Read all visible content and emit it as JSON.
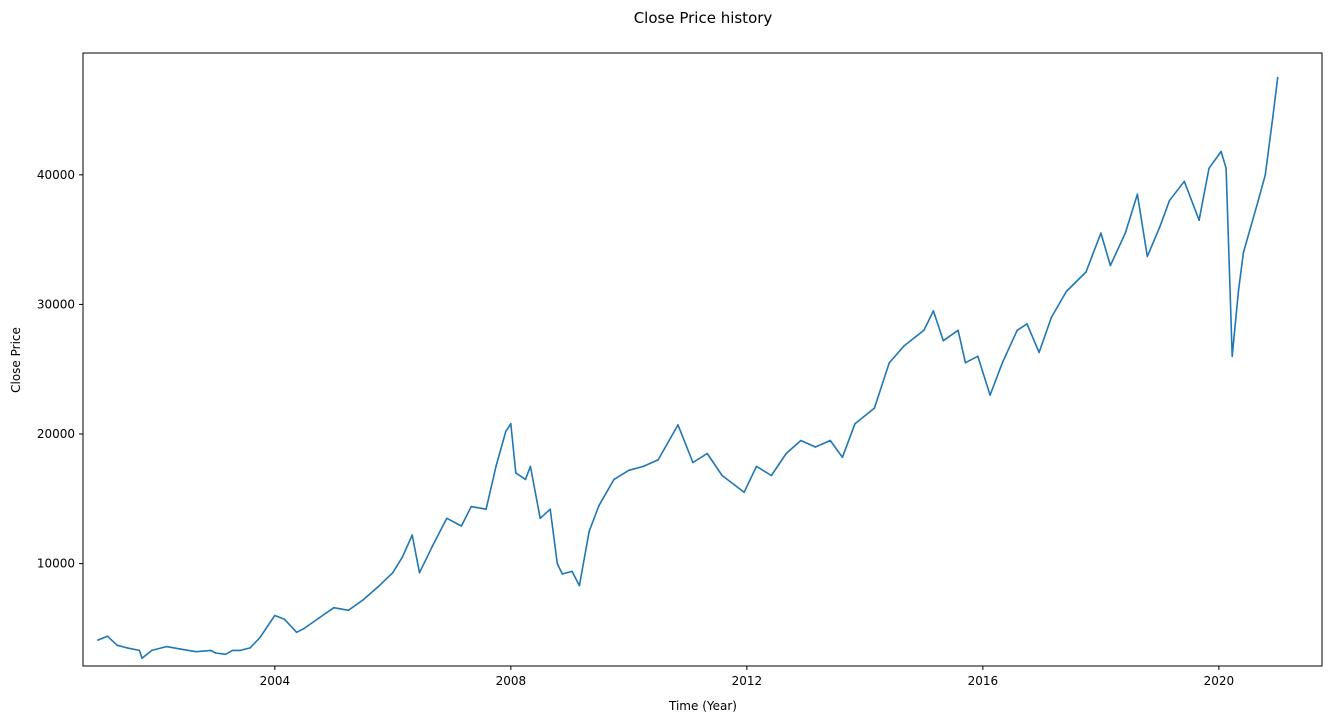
{
  "chart_data": {
    "type": "line",
    "title": "Close Price history",
    "xlabel": "Time (Year)",
    "ylabel": "Close Price",
    "x_ticks": [
      "2004",
      "2008",
      "2012",
      "2016",
      "2020"
    ],
    "y_ticks": [
      "10000",
      "20000",
      "30000",
      "40000"
    ],
    "xlim": [
      "2000-10-01",
      "2021-10-01"
    ],
    "ylim": [
      2100,
      49400
    ],
    "grid": false,
    "legend": "none",
    "series": [
      {
        "color": "#1f77b4",
        "points": [
          [
            "2001-01-01",
            4100
          ],
          [
            "2001-03-01",
            4400
          ],
          [
            "2001-05-01",
            3700
          ],
          [
            "2001-07-01",
            3500
          ],
          [
            "2001-09-15",
            3300
          ],
          [
            "2001-10-01",
            2700
          ],
          [
            "2001-12-01",
            3300
          ],
          [
            "2002-03-01",
            3600
          ],
          [
            "2002-06-01",
            3400
          ],
          [
            "2002-09-01",
            3200
          ],
          [
            "2002-12-01",
            3300
          ],
          [
            "2003-01-01",
            3100
          ],
          [
            "2003-03-01",
            3000
          ],
          [
            "2003-04-15",
            3300
          ],
          [
            "2003-06-01",
            3300
          ],
          [
            "2003-08-01",
            3500
          ],
          [
            "2003-10-01",
            4300
          ],
          [
            "2004-01-01",
            6000
          ],
          [
            "2004-03-01",
            5700
          ],
          [
            "2004-05-15",
            4700
          ],
          [
            "2004-07-01",
            5000
          ],
          [
            "2004-10-01",
            5800
          ],
          [
            "2005-01-01",
            6600
          ],
          [
            "2005-04-01",
            6400
          ],
          [
            "2005-07-01",
            7200
          ],
          [
            "2005-10-01",
            8200
          ],
          [
            "2006-01-01",
            9300
          ],
          [
            "2006-03-01",
            10500
          ],
          [
            "2006-05-01",
            12200
          ],
          [
            "2006-06-15",
            9300
          ],
          [
            "2006-09-01",
            11300
          ],
          [
            "2006-12-01",
            13500
          ],
          [
            "2007-03-01",
            12900
          ],
          [
            "2007-05-01",
            14400
          ],
          [
            "2007-08-01",
            14200
          ],
          [
            "2007-10-01",
            17500
          ],
          [
            "2007-12-01",
            20200
          ],
          [
            "2008-01-01",
            20800
          ],
          [
            "2008-02-01",
            17000
          ],
          [
            "2008-04-01",
            16500
          ],
          [
            "2008-05-01",
            17500
          ],
          [
            "2008-07-01",
            13500
          ],
          [
            "2008-09-01",
            14200
          ],
          [
            "2008-10-15",
            10000
          ],
          [
            "2008-11-15",
            9200
          ],
          [
            "2009-01-15",
            9400
          ],
          [
            "2009-03-01",
            8300
          ],
          [
            "2009-05-01",
            12500
          ],
          [
            "2009-07-01",
            14500
          ],
          [
            "2009-10-01",
            16500
          ],
          [
            "2010-01-01",
            17200
          ],
          [
            "2010-04-01",
            17500
          ],
          [
            "2010-07-01",
            18000
          ],
          [
            "2010-11-01",
            20700
          ],
          [
            "2011-02-01",
            17800
          ],
          [
            "2011-05-01",
            18500
          ],
          [
            "2011-08-01",
            16800
          ],
          [
            "2011-12-15",
            15500
          ],
          [
            "2012-03-01",
            17500
          ],
          [
            "2012-06-01",
            16800
          ],
          [
            "2012-09-01",
            18500
          ],
          [
            "2012-12-01",
            19500
          ],
          [
            "2013-03-01",
            19000
          ],
          [
            "2013-06-01",
            19500
          ],
          [
            "2013-08-15",
            18200
          ],
          [
            "2013-11-01",
            20800
          ],
          [
            "2014-03-01",
            22000
          ],
          [
            "2014-06-01",
            25500
          ],
          [
            "2014-09-01",
            26800
          ],
          [
            "2015-01-01",
            28000
          ],
          [
            "2015-03-01",
            29500
          ],
          [
            "2015-05-01",
            27200
          ],
          [
            "2015-08-01",
            28000
          ],
          [
            "2015-09-15",
            25500
          ],
          [
            "2015-12-01",
            26000
          ],
          [
            "2016-02-15",
            23000
          ],
          [
            "2016-05-01",
            25500
          ],
          [
            "2016-08-01",
            28000
          ],
          [
            "2016-10-01",
            28500
          ],
          [
            "2016-12-15",
            26300
          ],
          [
            "2017-03-01",
            29000
          ],
          [
            "2017-06-01",
            31000
          ],
          [
            "2017-10-01",
            32500
          ],
          [
            "2018-01-01",
            35500
          ],
          [
            "2018-03-01",
            33000
          ],
          [
            "2018-06-01",
            35500
          ],
          [
            "2018-08-15",
            38500
          ],
          [
            "2018-10-15",
            33700
          ],
          [
            "2019-01-01",
            36000
          ],
          [
            "2019-03-01",
            38000
          ],
          [
            "2019-06-01",
            39500
          ],
          [
            "2019-09-01",
            36500
          ],
          [
            "2019-11-01",
            40500
          ],
          [
            "2020-01-15",
            41800
          ],
          [
            "2020-02-15",
            40500
          ],
          [
            "2020-03-24",
            26000
          ],
          [
            "2020-05-01",
            31000
          ],
          [
            "2020-06-01",
            34000
          ],
          [
            "2020-09-01",
            38000
          ],
          [
            "2020-10-15",
            40000
          ],
          [
            "2020-12-01",
            44500
          ],
          [
            "2020-12-31",
            47500
          ]
        ]
      }
    ]
  }
}
